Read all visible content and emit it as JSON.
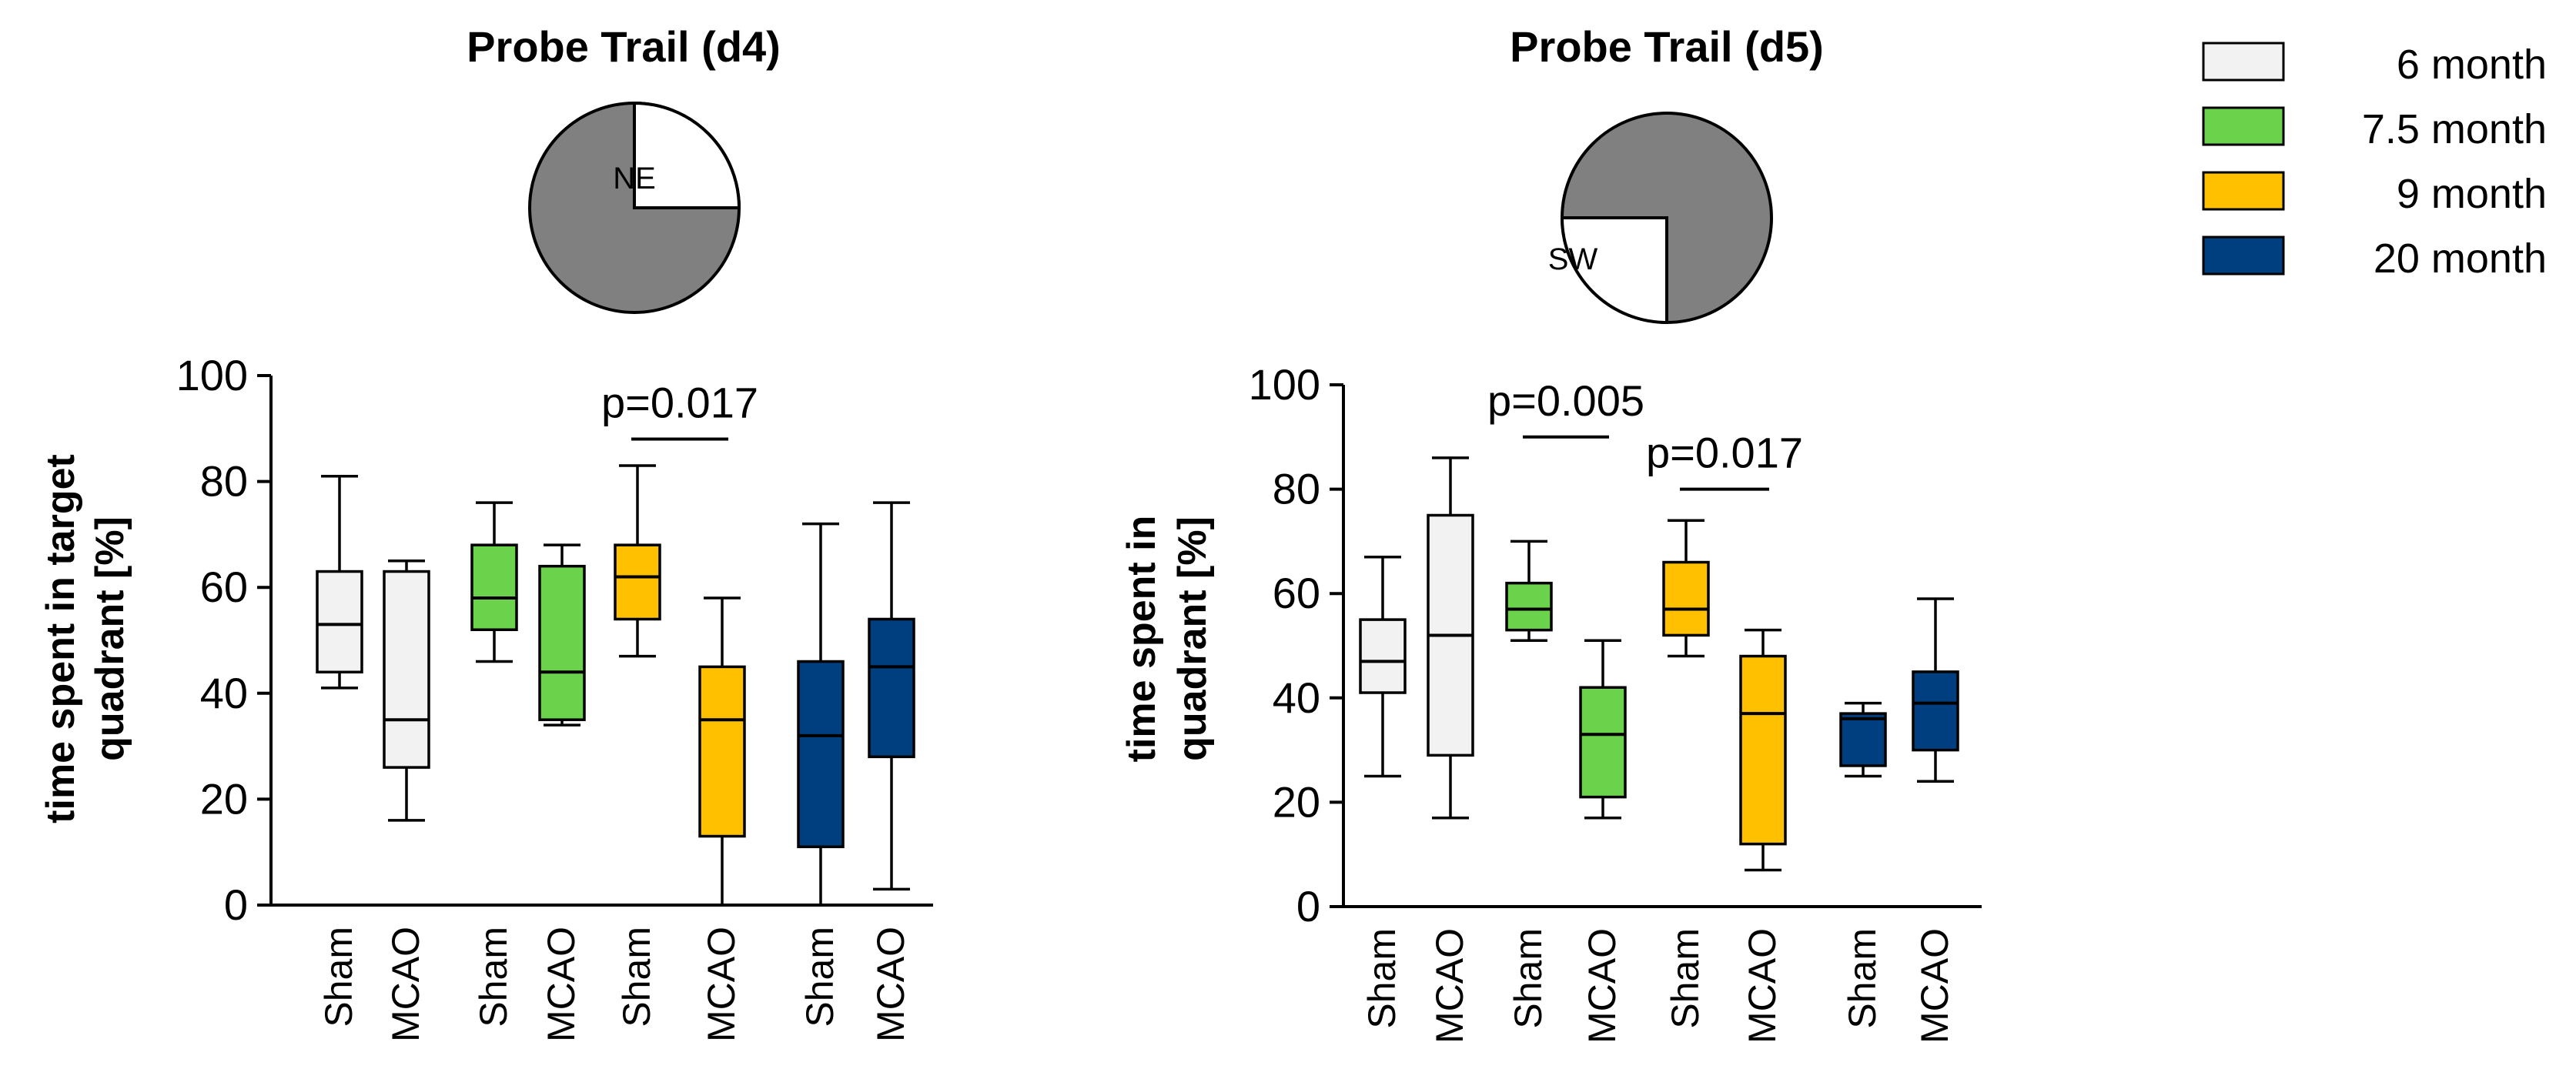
{
  "legend": {
    "items": [
      {
        "label": "6 month",
        "color": "#f2f2f2"
      },
      {
        "label": "7.5 month",
        "color": "#6bd24b"
      },
      {
        "label": "9 month",
        "color": "#ffc000"
      },
      {
        "label": "20 month",
        "color": "#003f7f"
      }
    ]
  },
  "chart_data": [
    {
      "type": "box",
      "title": "Probe Trail (d4)",
      "pie_label": "NE",
      "pie_target": "NE",
      "ylabel_line1": "time spent in target",
      "ylabel_line2": "quadrant [%]",
      "ylim": [
        0,
        100
      ],
      "yticks": [
        0,
        20,
        40,
        60,
        80,
        100
      ],
      "categories": [
        "Sham",
        "MCAO",
        "Sham",
        "MCAO",
        "Sham",
        "MCAO",
        "Sham",
        "MCAO"
      ],
      "groups": [
        "6 month",
        "6 month",
        "7.5 month",
        "7.5 month",
        "9 month",
        "9 month",
        "20 month",
        "20 month"
      ],
      "boxes": [
        {
          "min": 41,
          "q1": 44,
          "median": 53,
          "q3": 63,
          "max": 81
        },
        {
          "min": 16,
          "q1": 26,
          "median": 35,
          "q3": 63,
          "max": 65
        },
        {
          "min": 46,
          "q1": 52,
          "median": 58,
          "q3": 68,
          "max": 76
        },
        {
          "min": 34,
          "q1": 35,
          "median": 44,
          "q3": 64,
          "max": 68
        },
        {
          "min": 47,
          "q1": 54,
          "median": 62,
          "q3": 68,
          "max": 83
        },
        {
          "min": 0,
          "q1": 13,
          "median": 35,
          "q3": 45,
          "max": 58
        },
        {
          "min": 0,
          "q1": 11,
          "median": 32,
          "q3": 46,
          "max": 72
        },
        {
          "min": 3,
          "q1": 28,
          "median": 45,
          "q3": 54,
          "max": 76
        }
      ],
      "annotations": [
        {
          "text": "p=0.017",
          "from": 4,
          "to": 5,
          "y": 88
        }
      ]
    },
    {
      "type": "box",
      "title": "Probe Trail (d5)",
      "pie_label": "SW",
      "pie_target": "SW",
      "ylabel_line1": "time spent in",
      "ylabel_line2": "quadrant [%]",
      "ylim": [
        0,
        100
      ],
      "yticks": [
        0,
        20,
        40,
        60,
        80,
        100
      ],
      "categories": [
        "Sham",
        "MCAO",
        "Sham",
        "MCAO",
        "Sham",
        "MCAO",
        "Sham",
        "MCAO"
      ],
      "groups": [
        "6 month",
        "6 month",
        "7.5 month",
        "7.5 month",
        "9 month",
        "9 month",
        "20 month",
        "20 month"
      ],
      "boxes": [
        {
          "min": 25,
          "q1": 41,
          "median": 47,
          "q3": 55,
          "max": 67
        },
        {
          "min": 17,
          "q1": 29,
          "median": 52,
          "q3": 75,
          "max": 86
        },
        {
          "min": 51,
          "q1": 53,
          "median": 57,
          "q3": 62,
          "max": 70
        },
        {
          "min": 17,
          "q1": 21,
          "median": 33,
          "q3": 42,
          "max": 51
        },
        {
          "min": 48,
          "q1": 52,
          "median": 57,
          "q3": 66,
          "max": 74
        },
        {
          "min": 7,
          "q1": 12,
          "median": 37,
          "q3": 48,
          "max": 53
        },
        {
          "min": 25,
          "q1": 27,
          "median": 36,
          "q3": 37,
          "max": 39
        },
        {
          "min": 24,
          "q1": 30,
          "median": 39,
          "q3": 45,
          "max": 59
        }
      ],
      "annotations": [
        {
          "text": "p=0.005",
          "from": 2,
          "to": 3,
          "y": 90
        },
        {
          "text": "p=0.017",
          "from": 4,
          "to": 5,
          "y": 80
        }
      ]
    }
  ]
}
